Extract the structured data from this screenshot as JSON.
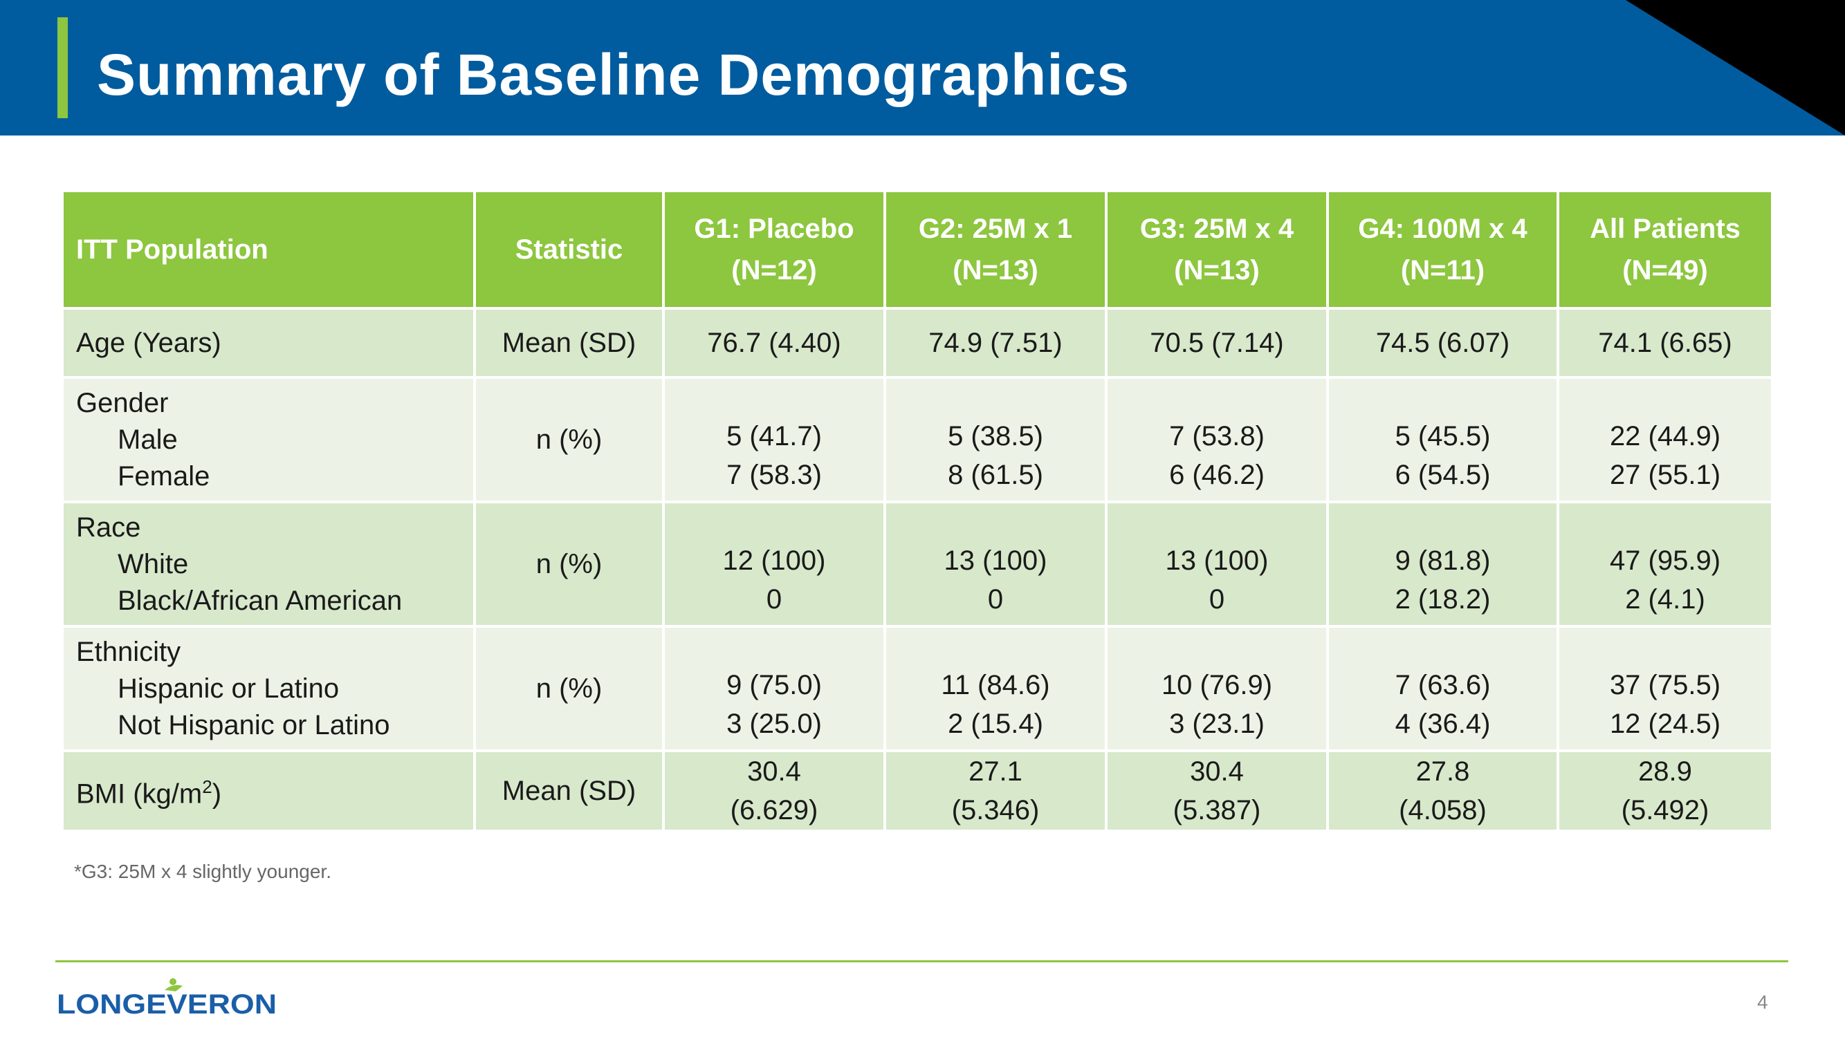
{
  "slide": {
    "title": "Summary of Baseline Demographics",
    "footnote": "*G3: 25M x 4 slightly younger.",
    "page_number": "4",
    "logo_text": "LONGEVERON",
    "colors": {
      "header_blue": "#005c9e",
      "accent_green": "#8dc63f",
      "corner_black": "#000000",
      "row_dark": "#d8e8cb",
      "row_light": "#ecf3e6"
    }
  },
  "table": {
    "headers": [
      {
        "line1": "ITT Population",
        "line2": ""
      },
      {
        "line1": "Statistic",
        "line2": ""
      },
      {
        "line1": "G1: Placebo",
        "line2": "(N=12)"
      },
      {
        "line1": "G2: 25M x 1",
        "line2": "(N=13)"
      },
      {
        "line1": "G3: 25M x 4",
        "line2": "(N=13)"
      },
      {
        "line1": "G4: 100M x 4",
        "line2": "(N=11)"
      },
      {
        "line1": "All Patients",
        "line2": "(N=49)"
      }
    ],
    "rows": [
      {
        "label": "Age (Years)",
        "statistic": "Mean (SD)",
        "values": [
          "76.7 (4.40)",
          "74.9 (7.51)",
          "70.5 (7.14)",
          "74.5 (6.07)",
          "74.1 (6.65)"
        ]
      },
      {
        "label": "Gender",
        "sublabels": [
          "Male",
          "Female"
        ],
        "statistic": "n (%)",
        "values": [
          [
            "5  (41.7)",
            "7  (58.3)"
          ],
          [
            "5 (38.5)",
            "8 (61.5)"
          ],
          [
            "7  (53.8)",
            "6  (46.2)"
          ],
          [
            "5 (45.5)",
            "6 (54.5)"
          ],
          [
            "22  (44.9)",
            "27  (55.1)"
          ]
        ]
      },
      {
        "label": "Race",
        "sublabels": [
          "White",
          "Black/African American"
        ],
        "statistic": "n (%)",
        "values": [
          [
            "12 (100)",
            "0"
          ],
          [
            "13 (100)",
            "0"
          ],
          [
            "13 (100)",
            "0"
          ],
          [
            "9 (81.8)",
            "2  (18.2)"
          ],
          [
            "47  (95.9)",
            "2 (4.1)"
          ]
        ]
      },
      {
        "label": "Ethnicity",
        "sublabels": [
          "Hispanic or Latino",
          "Not Hispanic or Latino"
        ],
        "statistic": "n (%)",
        "values": [
          [
            "9 (75.0)",
            "3 (25.0)"
          ],
          [
            "11 (84.6)",
            "2 (15.4)"
          ],
          [
            "10 (76.9)",
            "3 (23.1)"
          ],
          [
            "7 (63.6)",
            "4 (36.4)"
          ],
          [
            "37 (75.5)",
            "12 (24.5)"
          ]
        ]
      },
      {
        "label": "BMI (kg/m",
        "label_sup": "2",
        "label_end": ")",
        "statistic": "Mean (SD)",
        "values": [
          [
            "30.4",
            "(6.629)"
          ],
          [
            "27.1",
            "(5.346)"
          ],
          [
            "30.4",
            "(5.387)"
          ],
          [
            "27.8",
            "(4.058)"
          ],
          [
            "28.9",
            "(5.492)"
          ]
        ]
      }
    ]
  }
}
